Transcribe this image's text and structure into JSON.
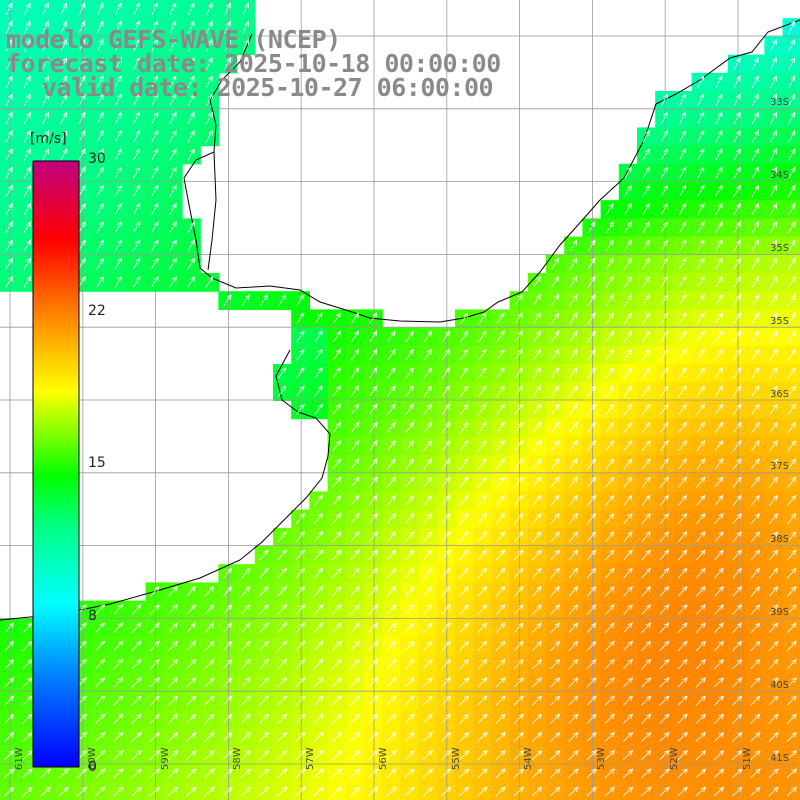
{
  "header": {
    "line1": "modelo GEFS-WAVE (NCEP)",
    "line2": "forecast date: 2025-10-18 00:00:00",
    "line3": "valid date: 2025-10-27 06:00:00"
  },
  "colorbar": {
    "unit": "[m/s]",
    "ticks": [
      "30",
      "22",
      "15",
      "8",
      "0"
    ],
    "colors": [
      "#0000ff",
      "#0080ff",
      "#00ffff",
      "#00ff80",
      "#00ff00",
      "#80ff00",
      "#ffff00",
      "#ff8000",
      "#ff0000",
      "#c00080"
    ]
  },
  "map": {
    "lat_labels": [
      "33S",
      "34S",
      "35S",
      "36S",
      "37S",
      "38S",
      "39S",
      "40S",
      "41S"
    ],
    "lon_labels": [
      "61W",
      "60W",
      "59W",
      "58W",
      "57W",
      "56W",
      "55W",
      "54W",
      "53W",
      "52W",
      "51W"
    ],
    "land_color": "#ffffff",
    "grid_color": "#999999",
    "coast_color": "#000000"
  }
}
